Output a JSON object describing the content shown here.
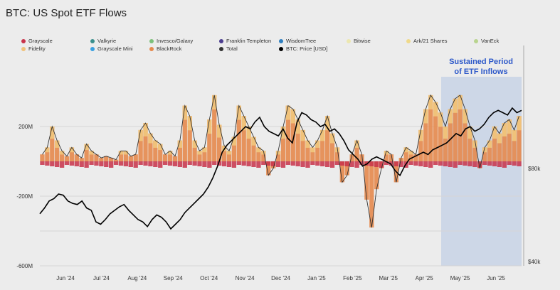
{
  "chart_data": {
    "type": "bar",
    "title": "BTC: US Spot ETF Flows",
    "legend": [
      {
        "name": "Grayscale",
        "color": "#c8324a"
      },
      {
        "name": "Valkyrie",
        "color": "#3a8f8c"
      },
      {
        "name": "Invesco/Galaxy",
        "color": "#7cc07a"
      },
      {
        "name": "Franklin Templeton",
        "color": "#4b3d8f"
      },
      {
        "name": "WisdomTree",
        "color": "#2f7fc0"
      },
      {
        "name": "Bitwise",
        "color": "#ece7b0"
      },
      {
        "name": "Ark/21 Shares",
        "color": "#efd98a"
      },
      {
        "name": "VanEck",
        "color": "#b9d48f"
      },
      {
        "name": "Fidelity",
        "color": "#f0c27a"
      },
      {
        "name": "Grayscale Mini",
        "color": "#3aa0e0"
      },
      {
        "name": "BlackRock",
        "color": "#e58a4e"
      },
      {
        "name": "Total",
        "color": "#333333"
      },
      {
        "name": "BTC: Price [USD]",
        "color": "#000000"
      }
    ],
    "y_left_ticks": [
      "200M",
      "-200M",
      "-600M"
    ],
    "y_left_values": [
      200,
      -200,
      -600
    ],
    "y_right_ticks": [
      "$80k",
      "$40k"
    ],
    "y_right_values": [
      80000,
      40000
    ],
    "ylim": [
      -600,
      600
    ],
    "x_labels": [
      "Jun '24",
      "Jul '24",
      "Aug '24",
      "Sep '24",
      "Oct '24",
      "Nov '24",
      "Dec '24",
      "Jan '25",
      "Feb '25",
      "Mar '25",
      "Apr '25",
      "May '25",
      "Jun '25"
    ],
    "annotation": "Sustained Period\nof ETF Inflows",
    "annotation_lines": [
      "Sustained Period",
      "of ETF Inflows"
    ],
    "series": [
      {
        "name": "Total",
        "values": [
          40,
          80,
          200,
          120,
          60,
          30,
          80,
          40,
          20,
          100,
          60,
          40,
          20,
          30,
          20,
          10,
          60,
          60,
          30,
          40,
          180,
          220,
          160,
          120,
          100,
          40,
          60,
          30,
          120,
          320,
          260,
          120,
          60,
          80,
          240,
          380,
          210,
          90,
          60,
          140,
          320,
          260,
          200,
          140,
          80,
          60,
          -80,
          -40,
          60,
          200,
          320,
          300,
          240,
          180,
          120,
          80,
          120,
          180,
          260,
          160,
          80,
          -120,
          -80,
          40,
          120,
          40,
          -220,
          -380,
          -160,
          -40,
          60,
          40,
          -120,
          20,
          80,
          60,
          40,
          180,
          300,
          380,
          340,
          280,
          200,
          300,
          360,
          380,
          300,
          200,
          120,
          -40,
          80,
          120,
          200,
          160,
          220,
          240,
          180,
          260
        ]
      },
      {
        "name": "BTC: Price [USD]",
        "values": [
          60500,
          63000,
          66000,
          67000,
          69000,
          68500,
          66000,
          65000,
          64500,
          66000,
          63000,
          62000,
          57000,
          56000,
          58000,
          60500,
          62000,
          63500,
          64500,
          62000,
          60000,
          58000,
          57000,
          55000,
          58000,
          60000,
          59000,
          57000,
          54000,
          56000,
          58000,
          61000,
          63000,
          65000,
          67000,
          69000,
          72000,
          76000,
          81000,
          87000,
          90000,
          92000,
          94000,
          96000,
          98000,
          97000,
          100000,
          102000,
          98000,
          96000,
          95000,
          94000,
          97000,
          93000,
          91000,
          100000,
          104000,
          103000,
          101000,
          100000,
          98000,
          99000,
          96000,
          97000,
          95000,
          92000,
          88000,
          86000,
          84000,
          81000,
          82000,
          84000,
          85000,
          84000,
          83000,
          82000,
          79000,
          77000,
          81000,
          84000,
          85000,
          86000,
          87000,
          86000,
          88000,
          89000,
          90000,
          91000,
          93000,
          95000,
          94000,
          97000,
          98000,
          96000,
          97000,
          99000,
          102000,
          104000,
          105000,
          104000,
          103000,
          106000,
          104000,
          105000
        ]
      }
    ]
  }
}
